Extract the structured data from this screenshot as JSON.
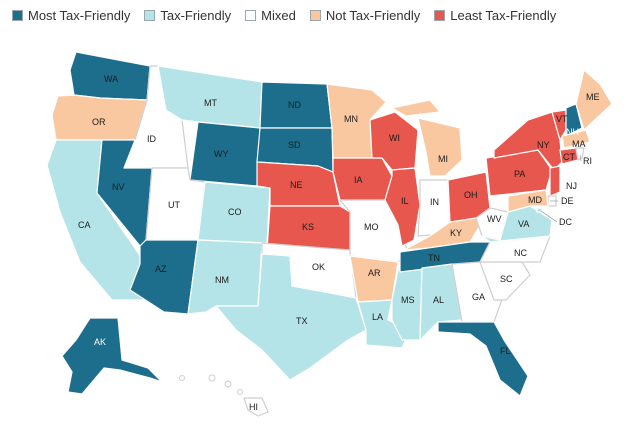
{
  "legend": [
    {
      "label": "Most Tax-Friendly",
      "color": "#1c6e8c"
    },
    {
      "label": "Tax-Friendly",
      "color": "#b4e4e7"
    },
    {
      "label": "Mixed",
      "color": "#ffffff"
    },
    {
      "label": "Not Tax-Friendly",
      "color": "#f9c8a0"
    },
    {
      "label": "Least Tax-Friendly",
      "color": "#e8574d"
    }
  ],
  "states": {
    "WA": {
      "label": "WA",
      "category": "Most Tax-Friendly"
    },
    "OR": {
      "label": "OR",
      "category": "Not Tax-Friendly"
    },
    "CA": {
      "label": "CA",
      "category": "Tax-Friendly"
    },
    "ID": {
      "label": "ID",
      "category": "Mixed"
    },
    "NV": {
      "label": "NV",
      "category": "Most Tax-Friendly"
    },
    "MT": {
      "label": "MT",
      "category": "Tax-Friendly"
    },
    "WY": {
      "label": "WY",
      "category": "Most Tax-Friendly"
    },
    "UT": {
      "label": "UT",
      "category": "Mixed"
    },
    "CO": {
      "label": "CO",
      "category": "Tax-Friendly"
    },
    "AZ": {
      "label": "AZ",
      "category": "Most Tax-Friendly"
    },
    "NM": {
      "label": "NM",
      "category": "Tax-Friendly"
    },
    "ND": {
      "label": "ND",
      "category": "Most Tax-Friendly"
    },
    "SD": {
      "label": "SD",
      "category": "Most Tax-Friendly"
    },
    "NE": {
      "label": "NE",
      "category": "Least Tax-Friendly"
    },
    "KS": {
      "label": "KS",
      "category": "Least Tax-Friendly"
    },
    "OK": {
      "label": "OK",
      "category": "Mixed"
    },
    "TX": {
      "label": "TX",
      "category": "Tax-Friendly"
    },
    "MN": {
      "label": "MN",
      "category": "Not Tax-Friendly"
    },
    "IA": {
      "label": "IA",
      "category": "Least Tax-Friendly"
    },
    "MO": {
      "label": "MO",
      "category": "Mixed"
    },
    "AR": {
      "label": "AR",
      "category": "Not Tax-Friendly"
    },
    "LA": {
      "label": "LA",
      "category": "Tax-Friendly"
    },
    "WI": {
      "label": "WI",
      "category": "Least Tax-Friendly"
    },
    "IL": {
      "label": "IL",
      "category": "Least Tax-Friendly"
    },
    "MS": {
      "label": "MS",
      "category": "Tax-Friendly"
    },
    "MI": {
      "label": "MI",
      "category": "Not Tax-Friendly"
    },
    "IN": {
      "label": "IN",
      "category": "Mixed"
    },
    "KY": {
      "label": "KY",
      "category": "Not Tax-Friendly"
    },
    "TN": {
      "label": "TN",
      "category": "Most Tax-Friendly"
    },
    "AL": {
      "label": "AL",
      "category": "Tax-Friendly"
    },
    "OH": {
      "label": "OH",
      "category": "Least Tax-Friendly"
    },
    "WV": {
      "label": "WV",
      "category": "Mixed"
    },
    "GA": {
      "label": "GA",
      "category": "Mixed"
    },
    "FL": {
      "label": "FL",
      "category": "Most Tax-Friendly"
    },
    "SC": {
      "label": "SC",
      "category": "Mixed"
    },
    "NC": {
      "label": "NC",
      "category": "Mixed"
    },
    "VA": {
      "label": "VA",
      "category": "Tax-Friendly"
    },
    "PA": {
      "label": "PA",
      "category": "Least Tax-Friendly"
    },
    "NY": {
      "label": "NY",
      "category": "Least Tax-Friendly"
    },
    "VT": {
      "label": "VT",
      "category": "Least Tax-Friendly"
    },
    "NH": {
      "label": "NH",
      "category": "Most Tax-Friendly"
    },
    "ME": {
      "label": "ME",
      "category": "Not Tax-Friendly"
    },
    "MA": {
      "label": "MA",
      "category": "Not Tax-Friendly"
    },
    "CT": {
      "label": "CT",
      "category": "Least Tax-Friendly"
    },
    "RI": {
      "label": "RI",
      "category": "Mixed"
    },
    "NJ": {
      "label": "NJ",
      "category": "Least Tax-Friendly"
    },
    "DE": {
      "label": "DE",
      "category": "Mixed"
    },
    "MD": {
      "label": "MD",
      "category": "Not Tax-Friendly"
    },
    "DC": {
      "label": "DC",
      "category": "Tax-Friendly"
    },
    "AK": {
      "label": "AK",
      "category": "Most Tax-Friendly"
    },
    "HI": {
      "label": "HI",
      "category": "Mixed"
    }
  }
}
